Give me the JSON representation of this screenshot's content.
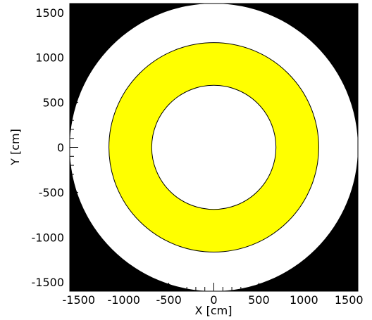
{
  "chart_data": {
    "type": "geometry",
    "xlabel": "X [cm]",
    "ylabel": "Y [cm]",
    "xlim": [
      -1600,
      1600
    ],
    "ylim": [
      -1600,
      1600
    ],
    "x_ticks": [
      -1500,
      -1000,
      -500,
      0,
      500,
      1000,
      1500
    ],
    "y_ticks": [
      -1500,
      -1000,
      -500,
      0,
      500,
      1000,
      1500
    ],
    "x_tick_labels": [
      "-1500",
      "-1000",
      "-500",
      "0",
      "500",
      "1000",
      "1500"
    ],
    "y_tick_labels": [
      "-1500",
      "-1000",
      "-500",
      "0",
      "500",
      "1000",
      "1500"
    ],
    "background_color": "#000000",
    "regions": [
      {
        "shape": "circle",
        "center": [
          0,
          0
        ],
        "radius": 1600,
        "fill": "#ffffff",
        "stroke": "none"
      },
      {
        "shape": "annulus",
        "center": [
          0,
          0
        ],
        "inner_radius": 690,
        "outer_radius": 1165,
        "fill": "#ffff00",
        "stroke": "#000000"
      }
    ]
  }
}
